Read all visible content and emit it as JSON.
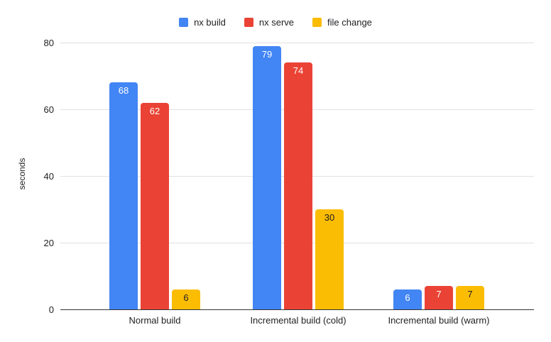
{
  "chart_data": {
    "type": "bar",
    "categories": [
      "Normal build",
      "Incremental build (cold)",
      "Incremental build (warm)"
    ],
    "series": [
      {
        "name": "nx build",
        "color": "#4285F4",
        "label_color": "#ffffff",
        "values": [
          68,
          79,
          6
        ]
      },
      {
        "name": "nx serve",
        "color": "#EA4335",
        "label_color": "#ffffff",
        "values": [
          62,
          74,
          7
        ]
      },
      {
        "name": "file change",
        "color": "#FBBC04",
        "label_color": "#202124",
        "values": [
          6,
          30,
          7
        ]
      }
    ],
    "title": "",
    "xlabel": "",
    "ylabel": "seconds",
    "ylim": [
      0,
      80
    ],
    "yticks": [
      0,
      20,
      40,
      60,
      80
    ],
    "grid": true,
    "legend_position": "top",
    "background": "#ffffff",
    "gridline_color": "#e0e0e0",
    "baseline_color": "#333333"
  }
}
